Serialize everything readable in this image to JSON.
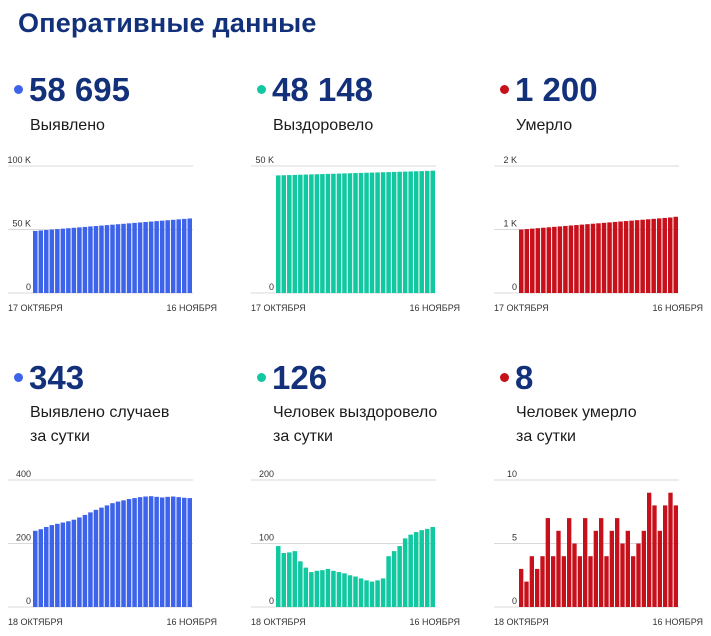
{
  "title": "Оперативные данные",
  "panels": [
    {
      "value": "58 695",
      "label": "Выявлено",
      "label2": "",
      "color": "#3d63eb"
    },
    {
      "value": "48 148",
      "label": "Выздоровело",
      "label2": "",
      "color": "#12c8a1"
    },
    {
      "value": "1 200",
      "label": "Умерло",
      "label2": "",
      "color": "#c8101b"
    },
    {
      "value": "343",
      "label": "Выявлено случаев",
      "label2": "за сутки",
      "color": "#3d63eb"
    },
    {
      "value": "126",
      "label": "Человек выздоровело",
      "label2": "за сутки",
      "color": "#12c8a1"
    },
    {
      "value": "8",
      "label": "Человек умерло",
      "label2": "за сутки",
      "color": "#c8101b"
    }
  ],
  "chart_data": [
    {
      "type": "bar",
      "color": "#3d63eb",
      "ylim": [
        0,
        100000
      ],
      "yticks": [
        "100 K",
        "50 K",
        "0"
      ],
      "ytick_values": [
        100000,
        50000,
        0
      ],
      "xlabels": [
        "17 ОКТЯБРЯ",
        "16 НОЯБРЯ"
      ],
      "values": [
        48900,
        49250,
        49600,
        49950,
        50300,
        50650,
        51000,
        51350,
        51700,
        52050,
        52400,
        52750,
        53100,
        53450,
        53800,
        54150,
        54500,
        54850,
        55200,
        55550,
        55900,
        56250,
        56600,
        56950,
        57300,
        57650,
        58000,
        58350,
        58695
      ]
    },
    {
      "type": "bar",
      "color": "#12c8a1",
      "ylim": [
        0,
        50000
      ],
      "yticks": [
        "50 K",
        "0"
      ],
      "ytick_values": [
        50000,
        0
      ],
      "xlabels": [
        "17 ОКТЯБРЯ",
        "16 НОЯБРЯ"
      ],
      "values": [
        46300,
        46365,
        46430,
        46495,
        46560,
        46625,
        46690,
        46755,
        46820,
        46885,
        46950,
        47015,
        47080,
        47145,
        47210,
        47275,
        47340,
        47405,
        47470,
        47535,
        47600,
        47665,
        47730,
        47795,
        47860,
        47925,
        47990,
        48060,
        48148
      ]
    },
    {
      "type": "bar",
      "color": "#c8101b",
      "ylim": [
        0,
        2000
      ],
      "yticks": [
        "2 K",
        "1 K",
        "0"
      ],
      "ytick_values": [
        2000,
        1000,
        0
      ],
      "xlabels": [
        "17 ОКТЯБРЯ",
        "16 НОЯБРЯ"
      ],
      "values": [
        1000,
        1007,
        1014,
        1021,
        1028,
        1035,
        1042,
        1049,
        1056,
        1063,
        1070,
        1077,
        1084,
        1091,
        1098,
        1105,
        1112,
        1119,
        1126,
        1133,
        1140,
        1147,
        1154,
        1161,
        1168,
        1175,
        1182,
        1189,
        1200
      ]
    },
    {
      "type": "bar",
      "color": "#3d63eb",
      "ylim": [
        0,
        400
      ],
      "yticks": [
        "400",
        "200",
        "0"
      ],
      "ytick_values": [
        400,
        200,
        0
      ],
      "xlabels": [
        "18 ОКТЯБРЯ",
        "16 НОЯБРЯ"
      ],
      "values": [
        240,
        245,
        252,
        258,
        262,
        266,
        270,
        275,
        282,
        290,
        298,
        306,
        313,
        320,
        327,
        332,
        336,
        340,
        343,
        346,
        348,
        349,
        347,
        345,
        347,
        348,
        346,
        344,
        343
      ]
    },
    {
      "type": "bar",
      "color": "#12c8a1",
      "ylim": [
        0,
        200
      ],
      "yticks": [
        "200",
        "100",
        "0"
      ],
      "ytick_values": [
        200,
        100,
        0
      ],
      "xlabels": [
        "18 ОКТЯБРЯ",
        "16 НОЯБРЯ"
      ],
      "values": [
        96,
        85,
        86,
        88,
        72,
        62,
        55,
        57,
        58,
        60,
        57,
        55,
        53,
        50,
        48,
        45,
        42,
        40,
        42,
        45,
        80,
        88,
        96,
        108,
        114,
        118,
        121,
        123,
        126
      ]
    },
    {
      "type": "bar",
      "color": "#c8101b",
      "ylim": [
        0,
        10
      ],
      "yticks": [
        "10",
        "5",
        "0"
      ],
      "ytick_values": [
        10,
        5,
        0
      ],
      "xlabels": [
        "18 ОКТЯБРЯ",
        "16 НОЯБРЯ"
      ],
      "values": [
        3,
        2,
        4,
        3,
        4,
        7,
        4,
        6,
        4,
        7,
        5,
        4,
        7,
        4,
        6,
        7,
        4,
        6,
        7,
        5,
        6,
        4,
        5,
        6,
        9,
        8,
        6,
        8,
        9,
        8
      ]
    }
  ]
}
